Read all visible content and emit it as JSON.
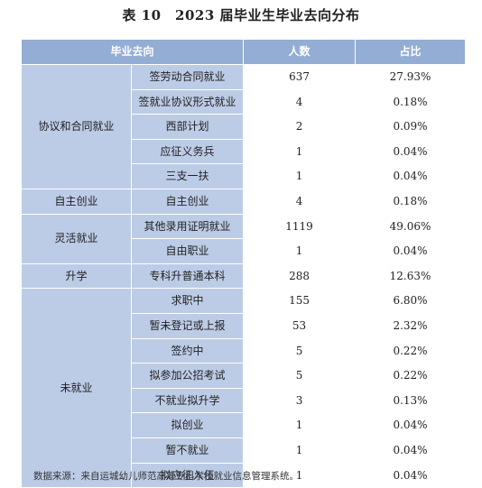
{
  "title": "表 10　2023 届毕业生毕业去向分布",
  "headers": {
    "destination": "毕业去向",
    "count": "人数",
    "ratio": "占比"
  },
  "groups": [
    {
      "category": "协议和合同就业",
      "rows": [
        {
          "sub": "签劳动合同就业",
          "count": "637",
          "ratio": "27.93%"
        },
        {
          "sub": "签就业协议形式就业",
          "count": "4",
          "ratio": "0.18%"
        },
        {
          "sub": "西部计划",
          "count": "2",
          "ratio": "0.09%"
        },
        {
          "sub": "应征义务兵",
          "count": "1",
          "ratio": "0.04%"
        },
        {
          "sub": "三支一扶",
          "count": "1",
          "ratio": "0.04%"
        }
      ]
    },
    {
      "category": "自主创业",
      "rows": [
        {
          "sub": "自主创业",
          "count": "4",
          "ratio": "0.18%"
        }
      ]
    },
    {
      "category": "灵活就业",
      "rows": [
        {
          "sub": "其他录用证明就业",
          "count": "1119",
          "ratio": "49.06%"
        },
        {
          "sub": "自由职业",
          "count": "1",
          "ratio": "0.04%"
        }
      ]
    },
    {
      "category": "升学",
      "rows": [
        {
          "sub": "专科升普通本科",
          "count": "288",
          "ratio": "12.63%"
        }
      ]
    },
    {
      "category": "未就业",
      "rows": [
        {
          "sub": "求职中",
          "count": "155",
          "ratio": "6.80%"
        },
        {
          "sub": "暂未登记或上报",
          "count": "53",
          "ratio": "2.32%"
        },
        {
          "sub": "签约中",
          "count": "5",
          "ratio": "0.22%"
        },
        {
          "sub": "拟参加公招考试",
          "count": "5",
          "ratio": "0.22%"
        },
        {
          "sub": "不就业拟升学",
          "count": "3",
          "ratio": "0.13%"
        },
        {
          "sub": "拟创业",
          "count": "1",
          "ratio": "0.04%"
        },
        {
          "sub": "暂不就业",
          "count": "1",
          "ratio": "0.04%"
        },
        {
          "sub": "拟应征入伍",
          "count": "1",
          "ratio": "0.04%"
        }
      ]
    }
  ],
  "source_note": "数据来源：来自运城幼儿师范高等专科学校就业信息管理系统。",
  "colors": {
    "header_bg": "#93add4",
    "category_bg": "#bdcce6"
  }
}
